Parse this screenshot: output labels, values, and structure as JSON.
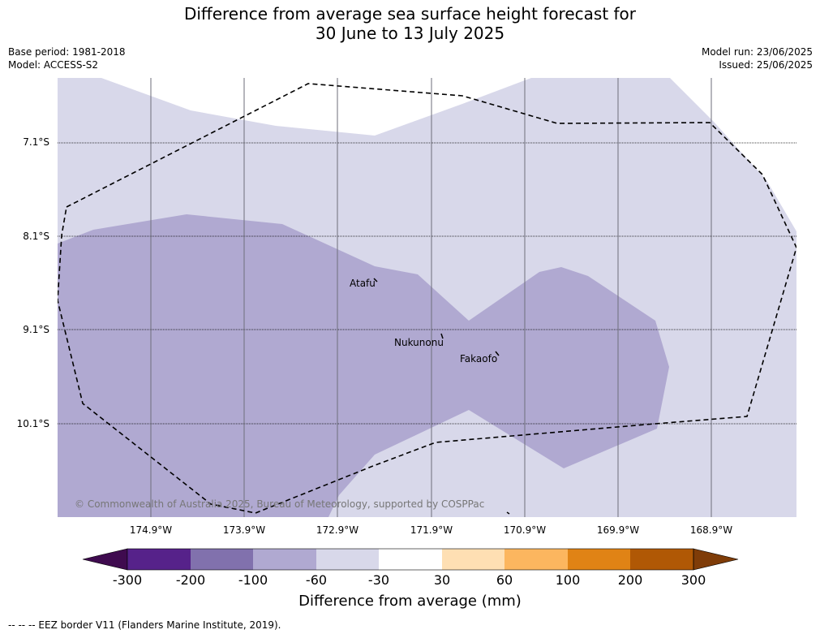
{
  "title_line1": "Difference from average sea surface height forecast for",
  "title_line2": "30 June to 13 July 2025",
  "meta": {
    "base_period": "Base period: 1981-2018",
    "model": "Model: ACCESS-S2",
    "model_run": "Model run: 23/06/2025",
    "issued": "Issued: 25/06/2025"
  },
  "lat_labels": [
    "7.1°S",
    "8.1°S",
    "9.1°S",
    "10.1°S"
  ],
  "lon_labels": [
    "174.9°W",
    "173.9°W",
    "172.9°W",
    "171.9°W",
    "170.9°W",
    "169.9°W",
    "168.9°W"
  ],
  "places": [
    "Atafu",
    "Nukunonu",
    "Fakaofo"
  ],
  "copyright": "© Commonwealth of Australia 2025, Bureau of Meteorology, supported by COSPPac",
  "colorbar": {
    "ticks": [
      "-300",
      "-200",
      "-100",
      "-60",
      "-30",
      "30",
      "60",
      "100",
      "200",
      "300"
    ],
    "colors": [
      "#3f0b4f",
      "#56228a",
      "#8171ad",
      "#b0a9d1",
      "#d8d8ea",
      "#ffffff",
      "#fedfb3",
      "#fcb65f",
      "#e08315",
      "#b05805",
      "#7f3c08"
    ],
    "label": "Difference from average (mm)"
  },
  "footnote": "--  --  -- EEZ border V11 (Flanders Marine Institute, 2019)."
}
